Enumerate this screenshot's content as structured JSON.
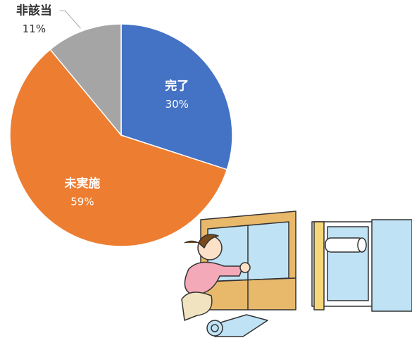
{
  "chart_data": {
    "type": "pie",
    "categories": [
      "完了",
      "未実施",
      "非該当"
    ],
    "values": [
      30,
      59,
      11
    ],
    "value_labels": [
      "30%",
      "59%",
      "11%"
    ],
    "colors": [
      "#4472c4",
      "#ed7d31",
      "#a5a5a5"
    ]
  }
}
